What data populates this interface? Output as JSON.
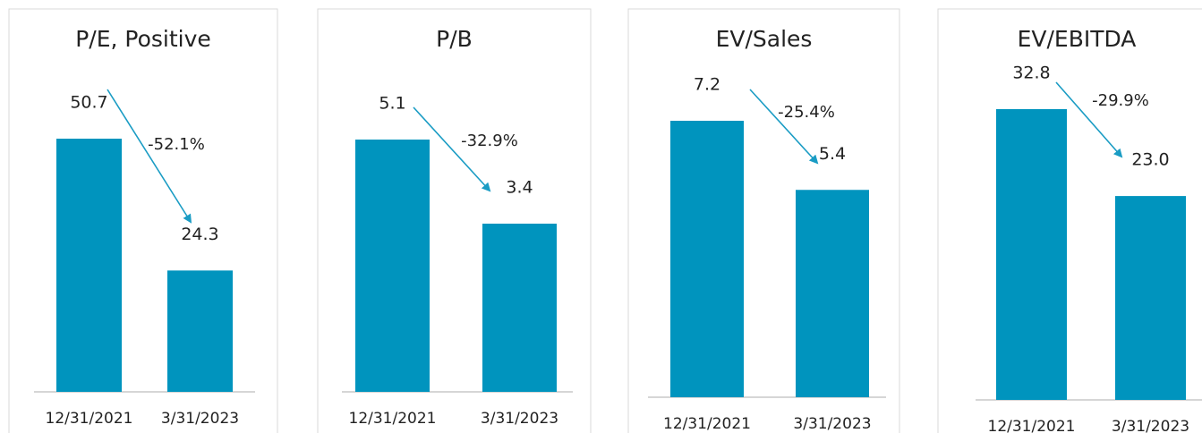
{
  "chart_data": [
    {
      "type": "bar",
      "title": "P/E, Positive",
      "categories": [
        "12/31/2021",
        "3/31/2023"
      ],
      "values": [
        50.7,
        24.3
      ],
      "annotation": "-52.1%",
      "color": "#0094be"
    },
    {
      "type": "bar",
      "title": "P/B",
      "categories": [
        "12/31/2021",
        "3/31/2023"
      ],
      "values": [
        5.1,
        3.4
      ],
      "annotation": "-32.9%",
      "color": "#0094be"
    },
    {
      "type": "bar",
      "title": "EV/Sales",
      "categories": [
        "12/31/2021",
        "3/31/2023"
      ],
      "values": [
        7.2,
        5.4
      ],
      "annotation": "-25.4%",
      "color": "#0094be"
    },
    {
      "type": "bar",
      "title": "EV/EBITDA",
      "categories": [
        "12/31/2021",
        "3/31/2023"
      ],
      "values": [
        32.8,
        23.0
      ],
      "value_labels": [
        "32.8",
        "23.0"
      ],
      "annotation": "-29.9%",
      "color": "#0094be"
    }
  ]
}
